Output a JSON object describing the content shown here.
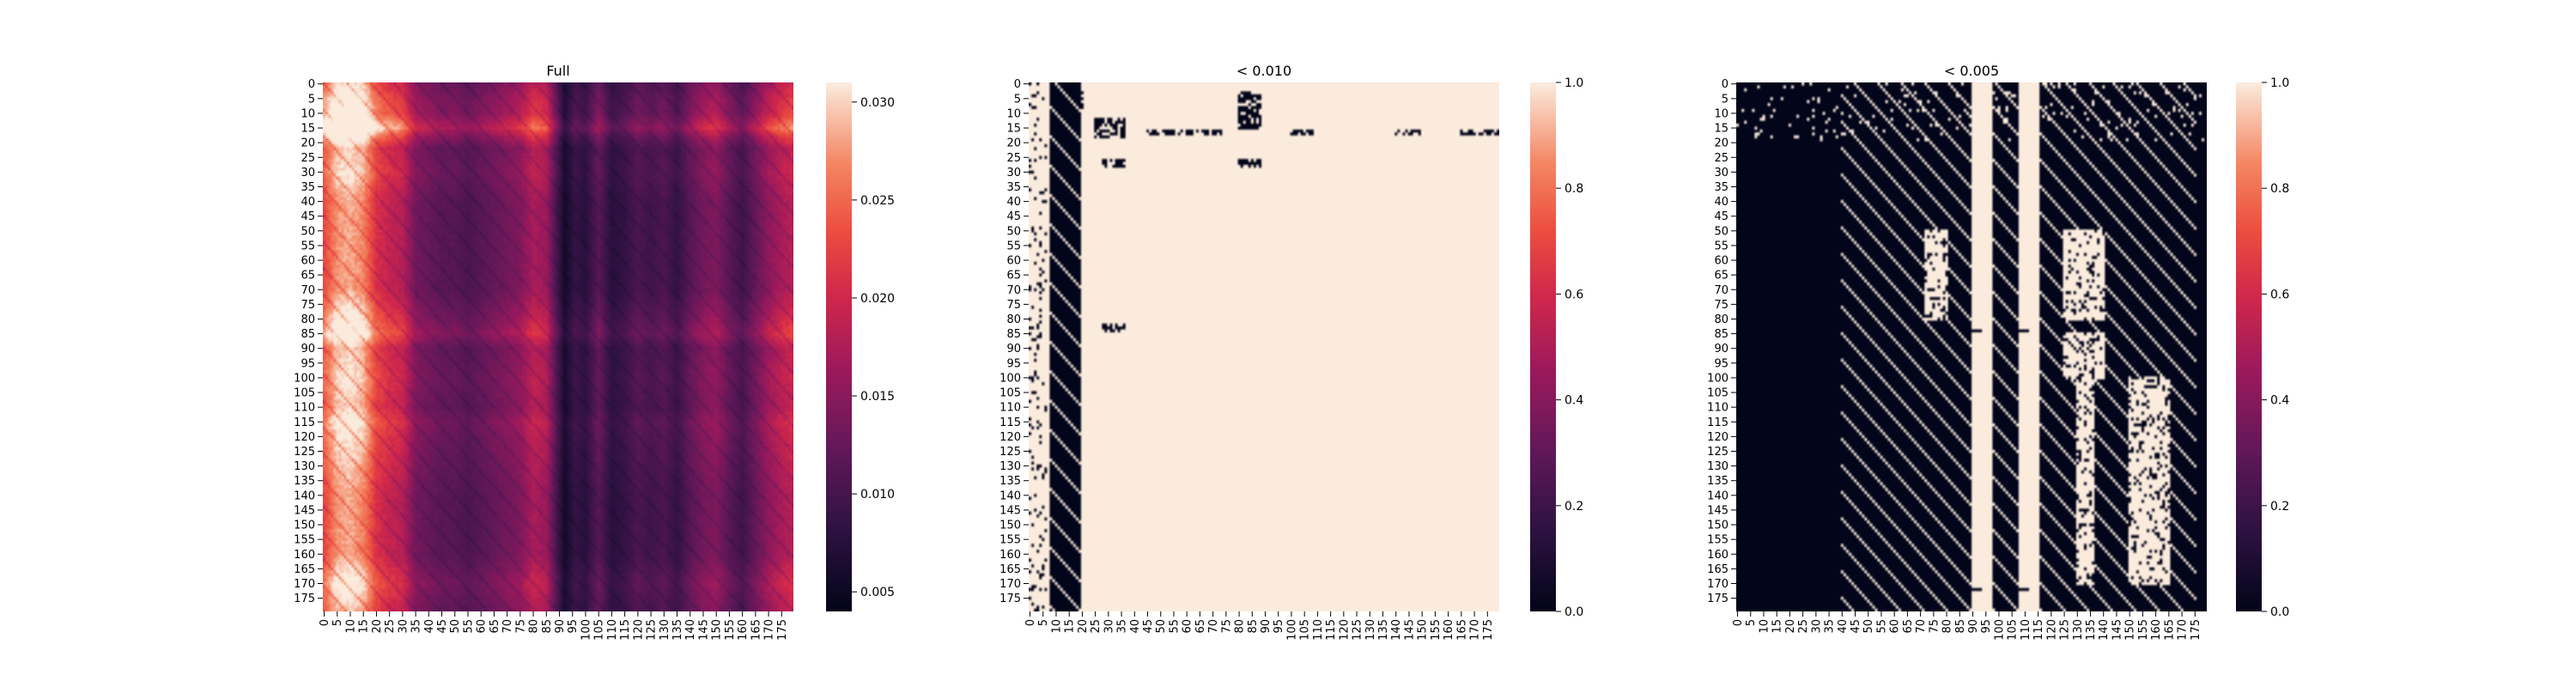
{
  "chart_data": [
    {
      "type": "heatmap",
      "title": "Full",
      "rows": 180,
      "cols": 180,
      "yticks": [
        "0",
        "5",
        "10",
        "15",
        "20",
        "25",
        "30",
        "35",
        "40",
        "45",
        "50",
        "55",
        "60",
        "65",
        "70",
        "75",
        "80",
        "85",
        "90",
        "95",
        "100",
        "105",
        "110",
        "115",
        "120",
        "125",
        "130",
        "135",
        "140",
        "145",
        "150",
        "155",
        "160",
        "165",
        "170",
        "175"
      ],
      "xticks": [
        "0",
        "5",
        "10",
        "15",
        "20",
        "25",
        "30",
        "35",
        "40",
        "45",
        "50",
        "55",
        "60",
        "65",
        "70",
        "75",
        "80",
        "85",
        "90",
        "95",
        "100",
        "105",
        "110",
        "115",
        "120",
        "125",
        "130",
        "135",
        "140",
        "145",
        "150",
        "155",
        "160",
        "165",
        "170",
        "175"
      ],
      "colorbar": {
        "min": 0.004,
        "max": 0.031,
        "ticks": [
          "0.005",
          "0.010",
          "0.015",
          "0.020",
          "0.025",
          "0.030"
        ],
        "tick_values": [
          0.005,
          0.01,
          0.015,
          0.02,
          0.025,
          0.03
        ]
      },
      "colormap": "rocket",
      "column_profile": [
        [
          0,
          0.024
        ],
        [
          5,
          0.029
        ],
        [
          10,
          0.03
        ],
        [
          15,
          0.028
        ],
        [
          20,
          0.022
        ],
        [
          25,
          0.02
        ],
        [
          30,
          0.019
        ],
        [
          35,
          0.014
        ],
        [
          40,
          0.013
        ],
        [
          45,
          0.012
        ],
        [
          50,
          0.012
        ],
        [
          55,
          0.011
        ],
        [
          60,
          0.012
        ],
        [
          65,
          0.013
        ],
        [
          70,
          0.014
        ],
        [
          75,
          0.015
        ],
        [
          80,
          0.018
        ],
        [
          85,
          0.017
        ],
        [
          88,
          0.012
        ],
        [
          92,
          0.006
        ],
        [
          96,
          0.009
        ],
        [
          100,
          0.008
        ],
        [
          105,
          0.012
        ],
        [
          110,
          0.008
        ],
        [
          115,
          0.009
        ],
        [
          120,
          0.011
        ],
        [
          125,
          0.01
        ],
        [
          130,
          0.011
        ],
        [
          135,
          0.009
        ],
        [
          140,
          0.012
        ],
        [
          145,
          0.014
        ],
        [
          150,
          0.015
        ],
        [
          155,
          0.012
        ],
        [
          160,
          0.01
        ],
        [
          165,
          0.013
        ],
        [
          170,
          0.016
        ],
        [
          175,
          0.018
        ],
        [
          179,
          0.019
        ]
      ],
      "row_profile": [
        [
          0,
          1.05
        ],
        [
          5,
          1.15
        ],
        [
          10,
          1.2
        ],
        [
          15,
          1.45
        ],
        [
          18,
          1.2
        ],
        [
          22,
          1.0
        ],
        [
          30,
          1.05
        ],
        [
          40,
          0.95
        ],
        [
          50,
          0.95
        ],
        [
          60,
          0.95
        ],
        [
          70,
          0.95
        ],
        [
          80,
          1.1
        ],
        [
          85,
          1.2
        ],
        [
          90,
          1.0
        ],
        [
          100,
          1.05
        ],
        [
          110,
          1.0
        ],
        [
          115,
          1.1
        ],
        [
          120,
          1.05
        ],
        [
          130,
          1.0
        ],
        [
          140,
          0.95
        ],
        [
          150,
          0.95
        ],
        [
          160,
          0.95
        ],
        [
          170,
          1.1
        ],
        [
          179,
          1.0
        ]
      ]
    },
    {
      "type": "heatmap",
      "title": "< 0.010",
      "rows": 180,
      "cols": 180,
      "yticks": [
        "0",
        "5",
        "10",
        "15",
        "20",
        "25",
        "30",
        "35",
        "40",
        "45",
        "50",
        "55",
        "60",
        "65",
        "70",
        "75",
        "80",
        "85",
        "90",
        "95",
        "100",
        "105",
        "110",
        "115",
        "120",
        "125",
        "130",
        "135",
        "140",
        "145",
        "150",
        "155",
        "160",
        "165",
        "170",
        "175"
      ],
      "xticks": [
        "0",
        "5",
        "10",
        "15",
        "20",
        "25",
        "30",
        "35",
        "40",
        "45",
        "50",
        "55",
        "60",
        "65",
        "70",
        "75",
        "80",
        "85",
        "90",
        "95",
        "100",
        "105",
        "110",
        "115",
        "120",
        "125",
        "130",
        "135",
        "140",
        "145",
        "150",
        "155",
        "160",
        "165",
        "170",
        "175"
      ],
      "colorbar": {
        "min": 0.0,
        "max": 1.0,
        "ticks": [
          "0.0",
          "0.2",
          "0.4",
          "0.6",
          "0.8",
          "1.0"
        ],
        "tick_values": [
          0,
          0.2,
          0.4,
          0.6,
          0.8,
          1.0
        ]
      },
      "colormap": "rocket",
      "note_dark_columns": [
        10,
        18
      ],
      "dark_blocks": [
        [
          0,
          8,
          16,
          20
        ],
        [
          12,
          18,
          25,
          36
        ],
        [
          16,
          17,
          44,
          73
        ],
        [
          16,
          17,
          100,
          108
        ],
        [
          16,
          17,
          140,
          150
        ],
        [
          16,
          17,
          165,
          179
        ],
        [
          3,
          15,
          80,
          88
        ],
        [
          26,
          28,
          28,
          36
        ],
        [
          26,
          28,
          80,
          88
        ],
        [
          82,
          84,
          28,
          36
        ]
      ]
    },
    {
      "type": "heatmap",
      "title": "< 0.005",
      "rows": 180,
      "cols": 180,
      "yticks": [
        "0",
        "5",
        "10",
        "15",
        "20",
        "25",
        "30",
        "35",
        "40",
        "45",
        "50",
        "55",
        "60",
        "65",
        "70",
        "75",
        "80",
        "85",
        "90",
        "95",
        "100",
        "105",
        "110",
        "115",
        "120",
        "125",
        "130",
        "135",
        "140",
        "145",
        "150",
        "155",
        "160",
        "165",
        "170",
        "175"
      ],
      "xticks": [
        "0",
        "5",
        "10",
        "15",
        "20",
        "25",
        "30",
        "35",
        "40",
        "45",
        "50",
        "55",
        "60",
        "65",
        "70",
        "75",
        "80",
        "85",
        "90",
        "95",
        "100",
        "105",
        "110",
        "115",
        "120",
        "125",
        "130",
        "135",
        "140",
        "145",
        "150",
        "155",
        "160",
        "165",
        "170",
        "175"
      ],
      "colorbar": {
        "min": 0.0,
        "max": 1.0,
        "ticks": [
          "0.0",
          "0.2",
          "0.4",
          "0.6",
          "0.8",
          "1.0"
        ],
        "tick_values": [
          0,
          0.2,
          0.4,
          0.6,
          0.8,
          1.0
        ]
      },
      "colormap": "rocket",
      "light_columns": [
        [
          90,
          97
        ],
        [
          108,
          115
        ]
      ],
      "light_blocks": [
        [
          50,
          80,
          72,
          80
        ],
        [
          50,
          80,
          125,
          140
        ],
        [
          85,
          100,
          125,
          140
        ],
        [
          100,
          170,
          130,
          136
        ],
        [
          100,
          170,
          150,
          165
        ]
      ]
    }
  ]
}
